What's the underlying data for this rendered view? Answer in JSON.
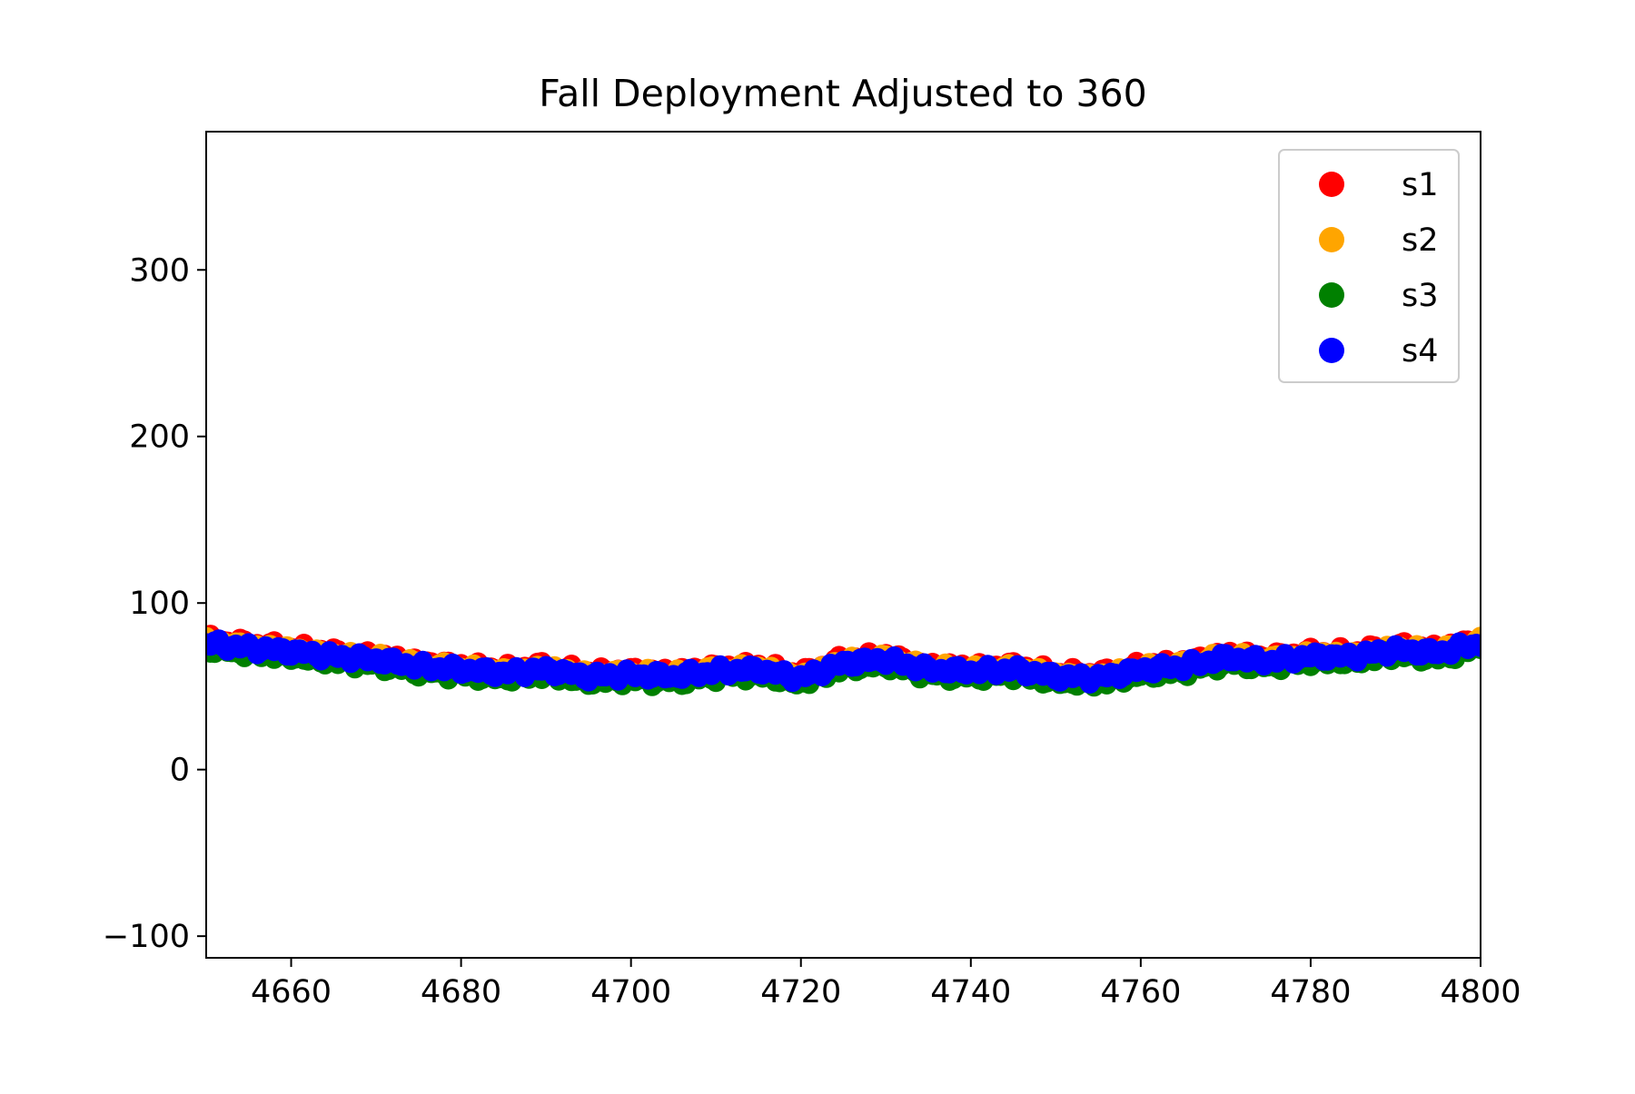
{
  "chart_data": {
    "type": "scatter",
    "title": "Fall Deployment Adjusted to 360",
    "xlabel": "",
    "ylabel": "",
    "xlim": [
      4650,
      4800
    ],
    "ylim": [
      -113,
      383
    ],
    "x_ticks": [
      4660,
      4680,
      4700,
      4720,
      4740,
      4760,
      4780,
      4800
    ],
    "y_ticks": [
      -100,
      0,
      100,
      200,
      300
    ],
    "x_tick_labels": [
      "4660",
      "4680",
      "4700",
      "4720",
      "4740",
      "4760",
      "4780",
      "4800"
    ],
    "y_tick_labels": [
      "−100",
      "0",
      "100",
      "200",
      "300"
    ],
    "grid": false,
    "legend_position": "top-right",
    "x": [
      4650,
      4655,
      4660,
      4665,
      4670,
      4675,
      4680,
      4685,
      4690,
      4695,
      4700,
      4705,
      4710,
      4715,
      4720,
      4725,
      4730,
      4735,
      4740,
      4745,
      4750,
      4755,
      4760,
      4765,
      4770,
      4775,
      4780,
      4785,
      4790,
      4795,
      4800
    ],
    "series": [
      {
        "name": "s1",
        "color": "#ff0000",
        "offset": 2.0,
        "values": [
          76,
          73,
          71,
          68,
          66,
          62,
          60,
          58,
          60,
          56,
          57,
          56,
          59,
          60,
          55,
          64,
          66,
          60,
          59,
          60,
          56,
          55,
          60,
          62,
          67,
          65,
          68,
          68,
          72,
          70,
          76
        ]
      },
      {
        "name": "s2",
        "color": "#ffa500",
        "offset": 0.5,
        "values": [
          76,
          73,
          71,
          68,
          66,
          62,
          60,
          58,
          60,
          56,
          57,
          56,
          59,
          60,
          55,
          64,
          66,
          60,
          59,
          60,
          56,
          55,
          60,
          62,
          67,
          65,
          68,
          68,
          72,
          70,
          76
        ]
      },
      {
        "name": "s3",
        "color": "#008000",
        "offset": -3.0,
        "values": [
          76,
          73,
          71,
          68,
          66,
          62,
          60,
          58,
          60,
          56,
          57,
          56,
          59,
          60,
          55,
          64,
          66,
          60,
          59,
          60,
          56,
          55,
          60,
          62,
          67,
          65,
          68,
          68,
          72,
          70,
          76
        ]
      },
      {
        "name": "s4",
        "color": "#0000ff",
        "offset": 0.0,
        "values": [
          76,
          73,
          71,
          68,
          66,
          62,
          60,
          58,
          60,
          56,
          57,
          56,
          59,
          60,
          55,
          64,
          66,
          60,
          59,
          60,
          56,
          55,
          60,
          62,
          67,
          65,
          68,
          68,
          72,
          70,
          76
        ]
      }
    ]
  }
}
